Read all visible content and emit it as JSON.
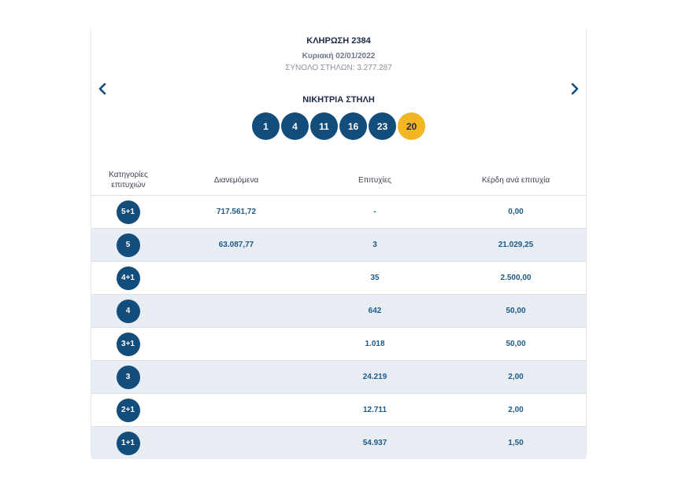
{
  "draw": {
    "title": "ΚΛΗΡΩΣΗ 2384",
    "date": "Κυριακή 02/01/2022",
    "total": "ΣΥΝΟΛΟ ΣΤΗΛΩΝ: 3.277.287"
  },
  "nav": {
    "prev_icon": "chevron-left-icon",
    "next_icon": "chevron-right-icon"
  },
  "winning": {
    "label": "ΝΙΚΗΤΡΙΑ ΣΤΗΛΗ",
    "numbers": [
      "1",
      "4",
      "11",
      "16",
      "23"
    ],
    "joker": "20"
  },
  "colors": {
    "ball": "#124d7c",
    "joker": "#f3b623",
    "row_alt": "#e8edf4",
    "value_text": "#1d5a8a"
  },
  "table": {
    "headers": [
      "Κατηγορίες επιτυχιών",
      "Διανεμόμενα",
      "Επιτυχίες",
      "Κέρδη ανά επιτυχία"
    ],
    "rows": [
      {
        "category": "5+1",
        "distributed": "717.561,72",
        "winners": "-",
        "prize": "0,00"
      },
      {
        "category": "5",
        "distributed": "63.087,77",
        "winners": "3",
        "prize": "21.029,25"
      },
      {
        "category": "4+1",
        "distributed": "",
        "winners": "35",
        "prize": "2.500,00"
      },
      {
        "category": "4",
        "distributed": "",
        "winners": "642",
        "prize": "50,00"
      },
      {
        "category": "3+1",
        "distributed": "",
        "winners": "1.018",
        "prize": "50,00"
      },
      {
        "category": "3",
        "distributed": "",
        "winners": "24.219",
        "prize": "2,00"
      },
      {
        "category": "2+1",
        "distributed": "",
        "winners": "12.711",
        "prize": "2,00"
      },
      {
        "category": "1+1",
        "distributed": "",
        "winners": "54.937",
        "prize": "1,50"
      }
    ]
  }
}
